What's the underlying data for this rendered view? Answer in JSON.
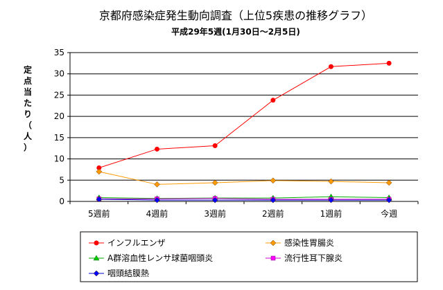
{
  "chart_data": {
    "type": "line",
    "title": "京都府感染症発生動向調査（上位5疾患の推移グラフ）",
    "subtitle": "平成29年5週(1月30日～2月5日)",
    "xlabel": "",
    "ylabel": "定点当たり（人）",
    "categories": [
      "5週前",
      "4週前",
      "3週前",
      "2週前",
      "1週前",
      "今週"
    ],
    "ylim": [
      0,
      35
    ],
    "yticks": [
      0,
      5,
      10,
      15,
      20,
      25,
      30,
      35
    ],
    "grid": true,
    "legend_position": "bottom",
    "series": [
      {
        "name": "インフルエンザ",
        "color": "#ff0000",
        "marker": "circle",
        "marker_color": "#ff0000",
        "values": [
          7.9,
          12.3,
          13.1,
          23.8,
          31.7,
          32.5
        ]
      },
      {
        "name": "感染性胃腸炎",
        "color": "#ff9900",
        "marker": "diamond",
        "marker_color": "#ff9900",
        "values": [
          7.0,
          4.0,
          4.4,
          4.9,
          4.7,
          4.4
        ]
      },
      {
        "name": "A群溶血性レンサ球菌咽頭炎",
        "color": "#00aa00",
        "marker": "triangle",
        "marker_color": "#00cc00",
        "values": [
          0.9,
          0.7,
          0.8,
          0.8,
          1.1,
          0.9
        ]
      },
      {
        "name": "流行性耳下腺炎",
        "color": "#cc00cc",
        "marker": "square",
        "marker_color": "#ff00ff",
        "values": [
          0.6,
          0.6,
          0.7,
          0.5,
          0.5,
          0.5
        ]
      },
      {
        "name": "咽頭結膜熱",
        "color": "#0000cc",
        "marker": "diamond",
        "marker_color": "#0000ff",
        "values": [
          0.5,
          0.3,
          0.3,
          0.3,
          0.3,
          0.3
        ]
      }
    ]
  }
}
